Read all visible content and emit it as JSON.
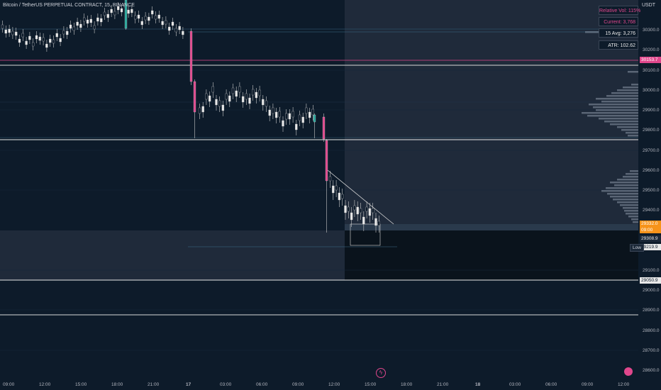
{
  "header": {
    "title": "Bitcoin / TetherUS PERPETUAL CONTRACT, 15, BINANCE",
    "currency": "USDT"
  },
  "info_panel": {
    "relative_vol": "Relative Vol: 115%",
    "current": "Current: 3,768",
    "avg": "15 Avg: 3,276",
    "atr": "ATR: 102.62"
  },
  "price_axis": {
    "ticks": [
      "30300.0",
      "30200.0",
      "30100.0",
      "30000.0",
      "29900.0",
      "29800.0",
      "29700.0",
      "29600.0",
      "29500.0",
      "29400.0",
      "29100.0",
      "29000.0",
      "28900.0",
      "28800.0",
      "28700.0",
      "28600.0"
    ],
    "tags": {
      "red_level": "30153.7",
      "current_price": "29332.0",
      "current_sub": "09:00",
      "level_1": "29308.9",
      "low": "29219.9",
      "level_2": "29050.9"
    },
    "low_label": "Low"
  },
  "time_axis": {
    "ticks": [
      "09:00",
      "12:00",
      "15:00",
      "18:00",
      "21:00",
      "17",
      "03:00",
      "06:00",
      "09:00",
      "12:00",
      "15:00",
      "18:00",
      "21:00",
      "18",
      "03:00",
      "06:00",
      "09:00",
      "12:00"
    ]
  },
  "colors": {
    "background": "#0d1b2a",
    "bear": "#e0478c",
    "bull": "#26a69a",
    "candle_fill": "#e8e8e8",
    "accent_orange": "#f7931a"
  },
  "icons": {
    "flash": "flash-icon",
    "settings": "settings-icon"
  }
}
